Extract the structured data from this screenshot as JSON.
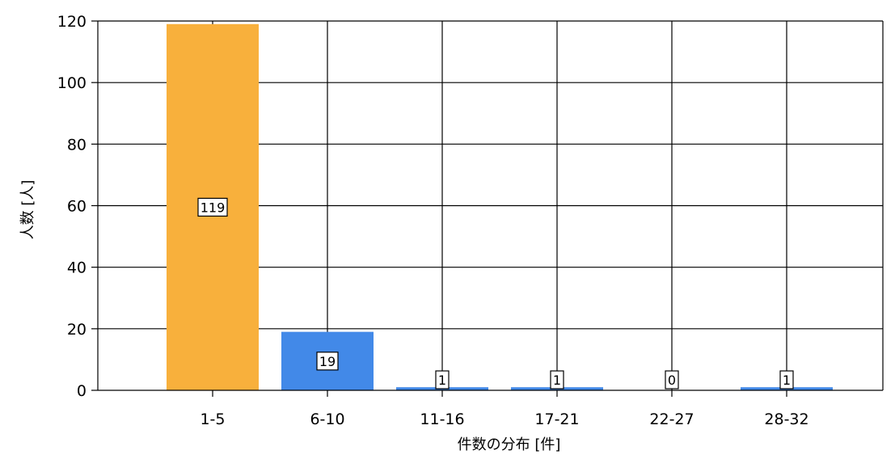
{
  "chart_data": {
    "type": "bar",
    "categories": [
      "1-5",
      "6-10",
      "11-16",
      "17-21",
      "22-27",
      "28-32"
    ],
    "values": [
      119,
      19,
      1,
      1,
      0,
      1
    ],
    "bar_colors": [
      "#f8b03c",
      "#4289e8",
      "#4289e8",
      "#4289e8",
      "#4289e8",
      "#4289e8"
    ],
    "data_labels": [
      "119",
      "19",
      "1",
      "1",
      "0",
      "1"
    ],
    "ylabel": "人数 [人]",
    "xlabel": "件数の分布 [件]",
    "ylim": [
      0,
      120
    ],
    "yticks": [
      0,
      20,
      40,
      60,
      80,
      100,
      120
    ],
    "grid": true,
    "legend": "none"
  }
}
